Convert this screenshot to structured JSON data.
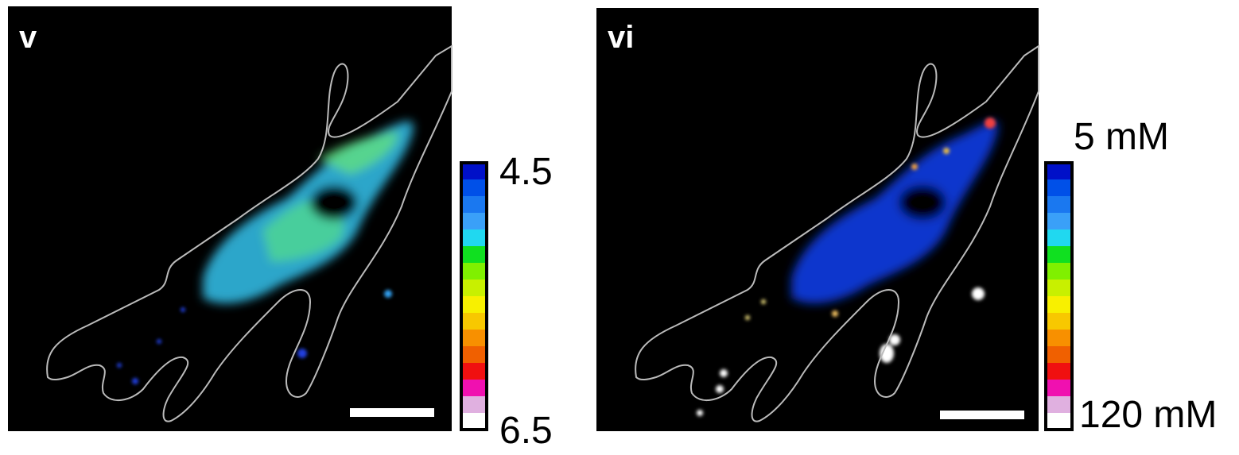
{
  "panels": [
    {
      "label": "v",
      "colorbar": {
        "top_label": "4.5",
        "bottom_label": "6.5",
        "colors": [
          "#0010c8",
          "#0050e8",
          "#1a78f0",
          "#3aa0f8",
          "#20d8f0",
          "#10e020",
          "#80f000",
          "#c8f000",
          "#f8f000",
          "#f8c800",
          "#f89000",
          "#f06000",
          "#f01010",
          "#f010b0",
          "#e0b0e0",
          "#ffffff"
        ]
      }
    },
    {
      "label": "vi",
      "colorbar": {
        "top_label": "5 mM",
        "bottom_label": "120 mM",
        "colors": [
          "#0010c8",
          "#0050e8",
          "#1a78f0",
          "#3aa0f8",
          "#20d8f0",
          "#10e020",
          "#80f000",
          "#c8f000",
          "#f8f000",
          "#f8c800",
          "#f89000",
          "#f06000",
          "#f01010",
          "#f010b0",
          "#e0b0e0",
          "#ffffff"
        ]
      }
    }
  ]
}
